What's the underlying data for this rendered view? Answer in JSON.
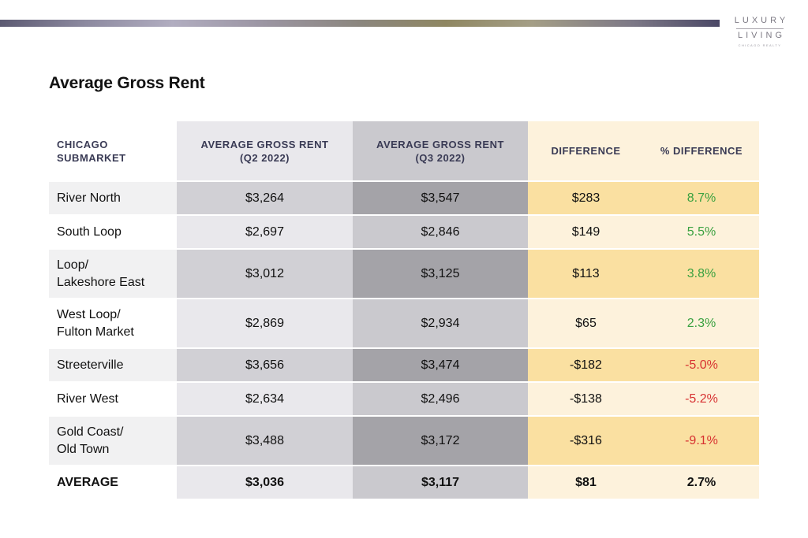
{
  "logo": {
    "line1": "LUXURY",
    "line2": "LIVING",
    "line3": "CHICAGO REALTY"
  },
  "title": "Average Gross Rent",
  "colors": {
    "positive": "#3aa140",
    "negative": "#d73131",
    "header_text": "#3a3b55"
  },
  "table": {
    "headers": [
      {
        "line1": "CHICAGO",
        "line2": "SUBMARKET"
      },
      {
        "line1": "AVERAGE GROSS RENT",
        "line2": "(Q2 2022)"
      },
      {
        "line1": "AVERAGE GROSS RENT",
        "line2": "(Q3 2022)"
      },
      {
        "line1": "DIFFERENCE",
        "line2": ""
      },
      {
        "line1": "% DIFFERENCE",
        "line2": ""
      }
    ],
    "rows": [
      {
        "line1": "River North",
        "line2": "",
        "q2": "$3,264",
        "q3": "$3,547",
        "diff": "$283",
        "pct": "8.7%"
      },
      {
        "line1": "South Loop",
        "line2": "",
        "q2": "$2,697",
        "q3": "$2,846",
        "diff": "$149",
        "pct": "5.5%"
      },
      {
        "line1": "Loop/",
        "line2": "Lakeshore East",
        "q2": "$3,012",
        "q3": "$3,125",
        "diff": "$113",
        "pct": "3.8%"
      },
      {
        "line1": "West Loop/",
        "line2": "Fulton Market",
        "q2": "$2,869",
        "q3": "$2,934",
        "diff": "$65",
        "pct": "2.3%"
      },
      {
        "line1": "Streeterville",
        "line2": "",
        "q2": "$3,656",
        "q3": "$3,474",
        "diff": "-$182",
        "pct": "-5.0%"
      },
      {
        "line1": "River West",
        "line2": "",
        "q2": "$2,634",
        "q3": "$2,496",
        "diff": "-$138",
        "pct": "-5.2%"
      },
      {
        "line1": "Gold Coast/",
        "line2": "Old Town",
        "q2": "$3,488",
        "q3": "$3,172",
        "diff": "-$316",
        "pct": "-9.1%"
      }
    ],
    "average": {
      "label": "AVERAGE",
      "q2": "$3,036",
      "q3": "$3,117",
      "diff": "$81",
      "pct": "2.7%"
    }
  }
}
